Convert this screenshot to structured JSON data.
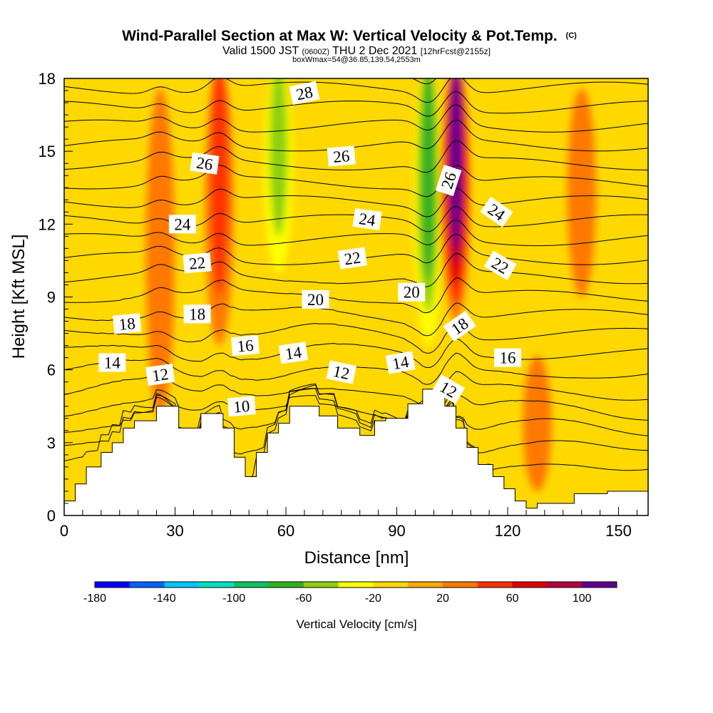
{
  "chart_data": {
    "type": "heatmap",
    "title": "Wind-Parallel Section at Max W: Vertical Velocity & Pot.Temp.",
    "copyright_mark": "(C)",
    "subtitle_parts": [
      "Valid 1500 JST",
      "(0600Z)",
      "THU 2 Dec 2021",
      "[12hrFcst@2155z]"
    ],
    "subtitle2": "boxWmax=54@36.85,139.54,2553m",
    "xlabel": "Distance [nm]",
    "ylabel": "Height [Kft MSL]",
    "xlim": [
      0,
      158
    ],
    "ylim": [
      0,
      18
    ],
    "x_ticks": [
      0,
      30,
      60,
      90,
      120,
      150
    ],
    "y_ticks": [
      0,
      3,
      6,
      9,
      12,
      15,
      18
    ],
    "colorbar": {
      "label": "Vertical Velocity [cm/s]",
      "tick_labels": [
        "-180",
        "-140",
        "-100",
        "-60",
        "-20",
        "20",
        "60",
        "100"
      ],
      "tick_values": [
        -180,
        -140,
        -100,
        -60,
        -20,
        20,
        60,
        100
      ],
      "boundaries": [
        -180,
        -160,
        -140,
        -120,
        -100,
        -80,
        -60,
        -40,
        -20,
        0,
        20,
        40,
        60,
        80,
        100,
        120
      ],
      "colors": [
        "#0000ff",
        "#0064ff",
        "#00c8ff",
        "#00e0c0",
        "#10c060",
        "#30b020",
        "#8ed010",
        "#ffff00",
        "#ffd800",
        "#ffa800",
        "#ff7800",
        "#ff3000",
        "#e00000",
        "#b40040",
        "#600090"
      ]
    },
    "velocity_features": [
      {
        "x": 42,
        "z_top": 18,
        "z_bottom": 7,
        "w": 55
      },
      {
        "x": 58,
        "z_top": 18,
        "z_bottom": 10,
        "w": -50
      },
      {
        "x": 98.5,
        "z_top": 18,
        "z_bottom": 7,
        "w": -60
      },
      {
        "x": 106,
        "z_top": 18,
        "z_bottom": 8,
        "w": 100
      },
      {
        "x": 26,
        "z_top": 17,
        "z_bottom": 4,
        "w": 30
      },
      {
        "x": 140,
        "z_top": 17,
        "z_bottom": 9,
        "w": 25
      },
      {
        "x": 128,
        "z_top": 6,
        "z_bottom": 1,
        "w": 25
      },
      {
        "x": 3,
        "z_top": 18,
        "z_bottom": 14,
        "w": -15
      }
    ],
    "terrain": {
      "x": [
        0,
        3,
        3,
        6,
        6,
        10,
        10,
        13,
        13,
        16,
        16,
        19,
        19,
        25,
        25,
        31,
        31,
        37,
        37,
        43,
        43,
        46,
        46,
        49,
        49,
        52,
        52,
        55,
        55,
        58,
        58,
        61,
        61,
        69,
        69,
        74,
        74,
        80,
        80,
        84,
        84,
        87,
        87,
        93,
        93,
        97,
        97,
        103,
        103,
        106,
        106,
        109,
        109,
        112,
        112,
        116,
        116,
        119,
        119,
        122,
        122,
        125,
        125,
        128,
        128,
        138,
        138,
        147,
        147,
        158
      ],
      "z": [
        0.6,
        0.6,
        1.3,
        1.3,
        2.0,
        2.0,
        2.6,
        2.6,
        3.0,
        3.0,
        3.6,
        3.6,
        3.9,
        3.9,
        4.5,
        4.5,
        3.6,
        3.6,
        4.2,
        4.2,
        3.6,
        3.6,
        2.4,
        2.4,
        1.6,
        1.6,
        2.6,
        2.6,
        3.4,
        3.4,
        3.8,
        3.8,
        4.5,
        4.5,
        4.1,
        4.1,
        3.6,
        3.6,
        3.3,
        3.3,
        3.9,
        3.9,
        4.0,
        4.0,
        4.6,
        4.6,
        5.2,
        5.2,
        4.5,
        4.5,
        3.6,
        3.6,
        2.8,
        2.8,
        2.1,
        2.1,
        1.6,
        1.6,
        1.1,
        1.1,
        0.6,
        0.6,
        0.3,
        0.3,
        0.5,
        0.5,
        0.9,
        0.9,
        1.0,
        1.0
      ]
    },
    "potential_temperature_contour_labels": [
      {
        "text": "28",
        "x": 65,
        "z": 17.4,
        "angle": -12
      },
      {
        "text": "26",
        "x": 38,
        "z": 14.5,
        "angle": 8
      },
      {
        "text": "26",
        "x": 75,
        "z": 14.8,
        "angle": -5
      },
      {
        "text": "26",
        "x": 104,
        "z": 13.8,
        "angle": -72
      },
      {
        "text": "24",
        "x": 32,
        "z": 12.0,
        "angle": 0
      },
      {
        "text": "24",
        "x": 82,
        "z": 12.2,
        "angle": 8
      },
      {
        "text": "24",
        "x": 117,
        "z": 12.5,
        "angle": 35
      },
      {
        "text": "22",
        "x": 36,
        "z": 10.4,
        "angle": -5
      },
      {
        "text": "22",
        "x": 78,
        "z": 10.6,
        "angle": -8
      },
      {
        "text": "22",
        "x": 118,
        "z": 10.3,
        "angle": 30
      },
      {
        "text": "20",
        "x": 68,
        "z": 8.9,
        "angle": 0
      },
      {
        "text": "20",
        "x": 94,
        "z": 9.2,
        "angle": 0
      },
      {
        "text": "18",
        "x": 17,
        "z": 7.9,
        "angle": -5
      },
      {
        "text": "18",
        "x": 36,
        "z": 8.3,
        "angle": 0
      },
      {
        "text": "18",
        "x": 107,
        "z": 7.8,
        "angle": -35
      },
      {
        "text": "16",
        "x": 49,
        "z": 7.0,
        "angle": -5
      },
      {
        "text": "16",
        "x": 120,
        "z": 6.5,
        "angle": 0
      },
      {
        "text": "14",
        "x": 13,
        "z": 6.3,
        "angle": 0
      },
      {
        "text": "14",
        "x": 62,
        "z": 6.7,
        "angle": -8
      },
      {
        "text": "14",
        "x": 91,
        "z": 6.3,
        "angle": -10
      },
      {
        "text": "12",
        "x": 26,
        "z": 5.8,
        "angle": -8
      },
      {
        "text": "12",
        "x": 75,
        "z": 5.9,
        "angle": 12
      },
      {
        "text": "12",
        "x": 104,
        "z": 5.2,
        "angle": 30
      },
      {
        "text": "10",
        "x": 48,
        "z": 4.5,
        "angle": -5
      }
    ]
  }
}
